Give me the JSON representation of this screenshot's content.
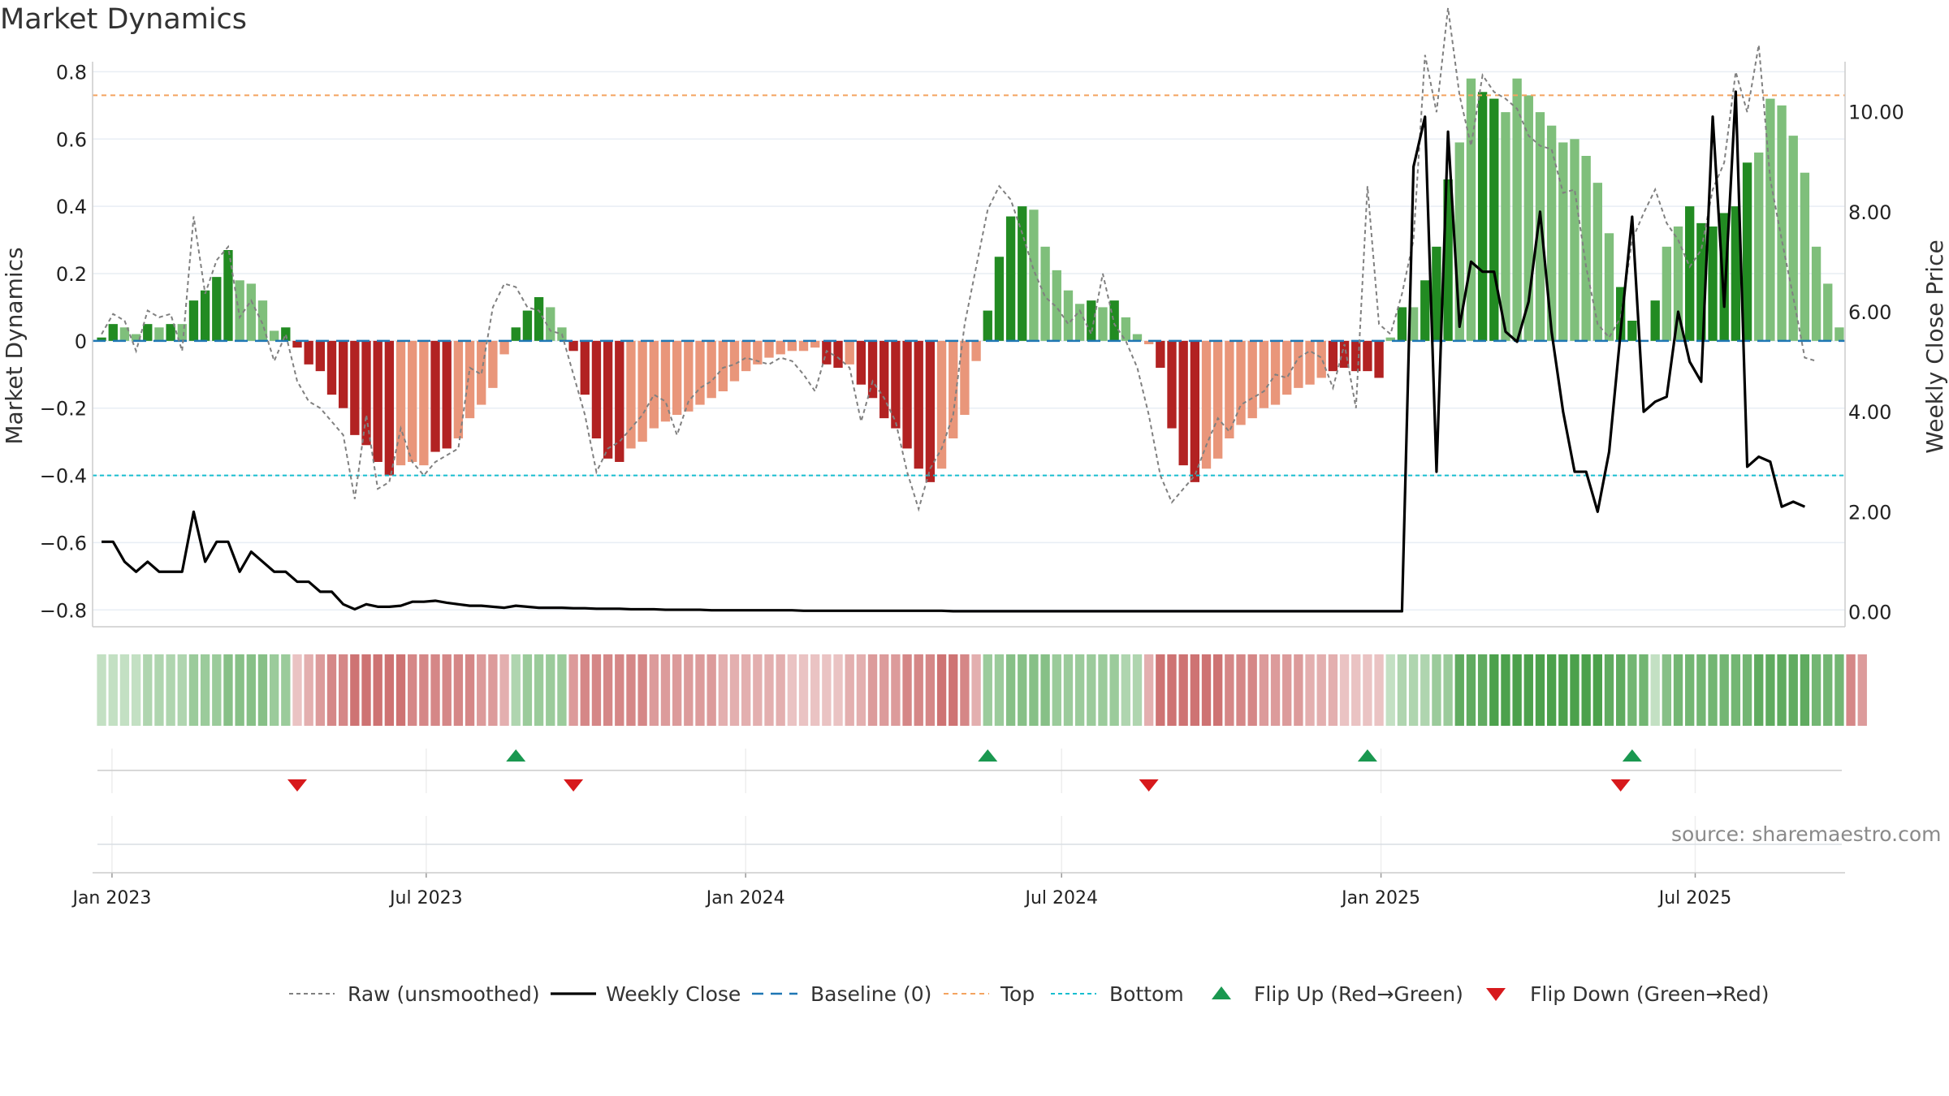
{
  "title": "Market Dynamics",
  "source": "source: sharemaestro.com",
  "colors": {
    "strong_green": "#228b22",
    "light_green": "#7fbf7b",
    "strong_red": "#b22222",
    "light_red": "#e9967a",
    "raw_line": "#808080",
    "close_line": "#000000",
    "baseline": "#1f77b4",
    "top": "#f4a460",
    "bottom": "#17becf",
    "flip_up": "#1a9850",
    "flip_down": "#d7191c"
  },
  "chart_data": {
    "type": "bar",
    "x_axis": {
      "ticks": [
        "Jan 2023",
        "Jul 2023",
        "Jan 2024",
        "Jul 2024",
        "Jan 2025",
        "Jul 2025"
      ],
      "start": "2022-12-26",
      "end": "2025-09-22"
    },
    "y_left": {
      "label": "Market Dynamics",
      "ylim": [
        -0.85,
        0.83
      ],
      "ticks": [
        "0.8",
        "0.6",
        "0.4",
        "0.2",
        "0",
        "−0.2",
        "−0.4",
        "−0.6",
        "−0.8"
      ]
    },
    "y_right": {
      "label": "Weekly Close Price",
      "ylim": [
        -0.3,
        11.0
      ],
      "ticks": [
        "10.00",
        "8.00",
        "6.00",
        "4.00",
        "2.00",
        "0.00"
      ]
    },
    "top_level": 0.73,
    "bottom_level": -0.4,
    "baseline": 0,
    "grid": true,
    "legend_position": "bottom",
    "legend": [
      "Raw (unsmoothed)",
      "Weekly Close",
      "Baseline (0)",
      "Top",
      "Bottom",
      "Flip Up (Red→Green)",
      "Flip Down (Green→Red)"
    ],
    "series": [
      {
        "name": "Market Dynamics",
        "values": [
          0.01,
          0.05,
          0.04,
          0.02,
          0.05,
          0.04,
          0.05,
          0.05,
          0.12,
          0.15,
          0.19,
          0.27,
          0.18,
          0.17,
          0.12,
          0.03,
          0.04,
          -0.02,
          -0.07,
          -0.09,
          -0.16,
          -0.2,
          -0.28,
          -0.31,
          -0.36,
          -0.4,
          -0.37,
          -0.36,
          -0.37,
          -0.33,
          -0.32,
          -0.29,
          -0.23,
          -0.19,
          -0.14,
          -0.04,
          0.04,
          0.09,
          0.13,
          0.1,
          0.04,
          -0.03,
          -0.16,
          -0.29,
          -0.35,
          -0.36,
          -0.32,
          -0.3,
          -0.26,
          -0.24,
          -0.22,
          -0.21,
          -0.19,
          -0.17,
          -0.15,
          -0.12,
          -0.09,
          -0.07,
          -0.05,
          -0.04,
          -0.03,
          -0.03,
          -0.02,
          -0.07,
          -0.08,
          -0.07,
          -0.13,
          -0.17,
          -0.23,
          -0.26,
          -0.32,
          -0.38,
          -0.42,
          -0.38,
          -0.29,
          -0.22,
          -0.06,
          0.09,
          0.25,
          0.37,
          0.4,
          0.39,
          0.28,
          0.21,
          0.15,
          0.11,
          0.12,
          0.1,
          0.12,
          0.07,
          0.02,
          -0.01,
          -0.08,
          -0.26,
          -0.37,
          -0.42,
          -0.38,
          -0.35,
          -0.29,
          -0.25,
          -0.23,
          -0.2,
          -0.19,
          -0.16,
          -0.14,
          -0.13,
          -0.11,
          -0.09,
          -0.08,
          -0.09,
          -0.09,
          -0.11,
          0.01,
          0.1,
          0.1,
          0.18,
          0.28,
          0.48,
          0.59,
          0.78,
          0.74,
          0.72,
          0.68,
          0.78,
          0.73,
          0.68,
          0.64,
          0.59,
          0.6,
          0.55,
          0.47,
          0.32,
          0.16,
          0.06,
          0.0,
          0.12,
          0.28,
          0.34,
          0.4,
          0.35,
          0.34,
          0.38,
          0.4,
          0.53,
          0.56,
          0.72,
          0.7,
          0.61,
          0.5,
          0.28,
          0.17,
          0.04
        ],
        "strong": [
          1,
          1,
          0,
          0,
          1,
          0,
          1,
          0,
          1,
          1,
          1,
          1,
          0,
          0,
          0,
          0,
          1,
          1,
          1,
          1,
          1,
          1,
          1,
          1,
          1,
          1,
          0,
          0,
          0,
          1,
          1,
          0,
          0,
          0,
          0,
          0,
          1,
          1,
          1,
          0,
          0,
          1,
          1,
          1,
          1,
          1,
          0,
          0,
          0,
          0,
          0,
          0,
          0,
          0,
          0,
          0,
          0,
          0,
          0,
          0,
          0,
          0,
          0,
          1,
          1,
          0,
          1,
          1,
          1,
          1,
          1,
          1,
          1,
          0,
          0,
          0,
          0,
          1,
          1,
          1,
          1,
          0,
          0,
          0,
          0,
          0,
          1,
          0,
          1,
          0,
          0,
          0,
          1,
          1,
          1,
          1,
          0,
          0,
          0,
          0,
          0,
          0,
          0,
          0,
          0,
          0,
          0,
          1,
          1,
          1,
          1,
          1,
          0,
          1,
          0,
          1,
          1,
          1,
          0,
          0,
          1,
          1,
          0,
          0,
          0,
          0,
          0,
          0,
          0,
          0,
          0,
          0,
          1,
          1,
          1,
          1,
          0,
          0,
          1,
          1,
          1,
          1,
          1,
          1,
          0,
          0,
          0,
          0,
          0
        ]
      },
      {
        "name": "Raw (unsmoothed)",
        "values": [
          0.02,
          0.08,
          0.06,
          -0.03,
          0.09,
          0.07,
          0.08,
          -0.03,
          0.37,
          0.14,
          0.24,
          0.28,
          0.07,
          0.12,
          0.05,
          -0.06,
          0.02,
          -0.12,
          -0.18,
          -0.2,
          -0.24,
          -0.28,
          -0.47,
          -0.22,
          -0.44,
          -0.42,
          -0.26,
          -0.36,
          -0.4,
          -0.36,
          -0.34,
          -0.32,
          -0.08,
          -0.1,
          0.1,
          0.17,
          0.16,
          0.1,
          0.09,
          0.03,
          0.02,
          -0.1,
          -0.22,
          -0.39,
          -0.32,
          -0.3,
          -0.26,
          -0.22,
          -0.16,
          -0.18,
          -0.28,
          -0.18,
          -0.14,
          -0.12,
          -0.08,
          -0.07,
          -0.05,
          -0.06,
          -0.07,
          -0.05,
          -0.06,
          -0.1,
          -0.15,
          -0.03,
          -0.05,
          -0.08,
          -0.24,
          -0.12,
          -0.17,
          -0.24,
          -0.39,
          -0.5,
          -0.38,
          -0.32,
          -0.22,
          0.05,
          0.22,
          0.39,
          0.46,
          0.42,
          0.32,
          0.21,
          0.13,
          0.1,
          0.05,
          0.09,
          0.02,
          0.2,
          0.05,
          0.0,
          -0.08,
          -0.22,
          -0.4,
          -0.48,
          -0.44,
          -0.4,
          -0.31,
          -0.23,
          -0.27,
          -0.19,
          -0.17,
          -0.15,
          -0.1,
          -0.11,
          -0.05,
          -0.03,
          -0.05,
          -0.14,
          -0.01,
          -0.2,
          0.46,
          0.05,
          0.02,
          0.14,
          0.3,
          0.85,
          0.68,
          0.99,
          0.73,
          0.58,
          0.79,
          0.74,
          0.72,
          0.69,
          0.61,
          0.58,
          0.57,
          0.44,
          0.45,
          0.22,
          0.05,
          0.01,
          0.07,
          0.3,
          0.38,
          0.45,
          0.35,
          0.3,
          0.22,
          0.27,
          0.45,
          0.53,
          0.8,
          0.68,
          0.88,
          0.48,
          0.3,
          0.13,
          -0.05,
          -0.06
        ]
      },
      {
        "name": "Weekly Close",
        "values": [
          1.4,
          1.4,
          1.0,
          0.8,
          1.0,
          0.8,
          0.8,
          0.8,
          2.0,
          1.0,
          1.4,
          1.4,
          0.8,
          1.2,
          1.0,
          0.8,
          0.8,
          0.6,
          0.6,
          0.4,
          0.4,
          0.15,
          0.05,
          0.15,
          0.1,
          0.1,
          0.12,
          0.2,
          0.2,
          0.22,
          0.18,
          0.15,
          0.12,
          0.12,
          0.1,
          0.08,
          0.12,
          0.1,
          0.08,
          0.08,
          0.08,
          0.07,
          0.07,
          0.06,
          0.06,
          0.06,
          0.05,
          0.05,
          0.05,
          0.04,
          0.04,
          0.04,
          0.04,
          0.03,
          0.03,
          0.03,
          0.03,
          0.03,
          0.03,
          0.03,
          0.03,
          0.02,
          0.02,
          0.02,
          0.02,
          0.02,
          0.02,
          0.02,
          0.02,
          0.02,
          0.02,
          0.02,
          0.02,
          0.02,
          0.01,
          0.01,
          0.01,
          0.01,
          0.01,
          0.01,
          0.01,
          0.01,
          0.01,
          0.01,
          0.01,
          0.01,
          0.01,
          0.01,
          0.01,
          0.01,
          0.01,
          0.01,
          0.01,
          0.01,
          0.01,
          0.01,
          0.01,
          0.01,
          0.01,
          0.01,
          0.01,
          0.01,
          0.01,
          0.01,
          0.01,
          0.01,
          0.01,
          0.01,
          0.01,
          0.01,
          0.01,
          0.01,
          0.01,
          0.01,
          8.9,
          9.9,
          2.8,
          9.6,
          5.7,
          7.0,
          6.8,
          6.8,
          5.6,
          5.4,
          6.2,
          8.0,
          5.6,
          4.0,
          2.8,
          2.8,
          2.0,
          3.2,
          5.6,
          7.9,
          4.0,
          4.2,
          4.3,
          6.0,
          5.0,
          4.6,
          9.9,
          6.1,
          10.4,
          2.9,
          3.1,
          3.0,
          2.1,
          2.2,
          2.1
        ]
      }
    ],
    "regime_strip": [
      0.7,
      0.7,
      0.7,
      0.7,
      0.6,
      0.6,
      0.6,
      0.6,
      0.5,
      0.5,
      0.5,
      0.4,
      0.4,
      0.4,
      0.4,
      0.5,
      0.5,
      0.7,
      0.6,
      0.5,
      0.4,
      0.4,
      0.3,
      0.3,
      0.3,
      0.3,
      0.3,
      0.4,
      0.4,
      0.4,
      0.4,
      0.4,
      0.4,
      0.5,
      0.5,
      0.6,
      0.6,
      0.5,
      0.5,
      0.5,
      0.5,
      0.5,
      0.4,
      0.4,
      0.4,
      0.4,
      0.4,
      0.4,
      0.5,
      0.5,
      0.5,
      0.5,
      0.5,
      0.5,
      0.6,
      0.6,
      0.6,
      0.6,
      0.6,
      0.6,
      0.7,
      0.7,
      0.7,
      0.7,
      0.7,
      0.6,
      0.6,
      0.5,
      0.5,
      0.5,
      0.4,
      0.4,
      0.4,
      0.3,
      0.3,
      0.4,
      0.6,
      0.5,
      0.5,
      0.4,
      0.4,
      0.4,
      0.4,
      0.5,
      0.5,
      0.5,
      0.5,
      0.5,
      0.5,
      0.6,
      0.6,
      0.6,
      0.3,
      0.3,
      0.3,
      0.3,
      0.3,
      0.3,
      0.4,
      0.4,
      0.4,
      0.5,
      0.5,
      0.5,
      0.5,
      0.6,
      0.6,
      0.6,
      0.7,
      0.7,
      0.7,
      0.7,
      0.7,
      0.6,
      0.6,
      0.6,
      0.5,
      0.5,
      0.2,
      0.2,
      0.2,
      0.1,
      0.1,
      0.1,
      0.1,
      0.1,
      0.1,
      0.1,
      0.1,
      0.1,
      0.1,
      0.2,
      0.2,
      0.3,
      0.3,
      0.7,
      0.4,
      0.3,
      0.3,
      0.3,
      0.3,
      0.3,
      0.3,
      0.3,
      0.2,
      0.2,
      0.2,
      0.2,
      0.2,
      0.3,
      0.3,
      0.3,
      0.4,
      0.5
    ],
    "flip_up": [
      36,
      77,
      110,
      133
    ],
    "flip_down": [
      17,
      41,
      91,
      132
    ]
  }
}
